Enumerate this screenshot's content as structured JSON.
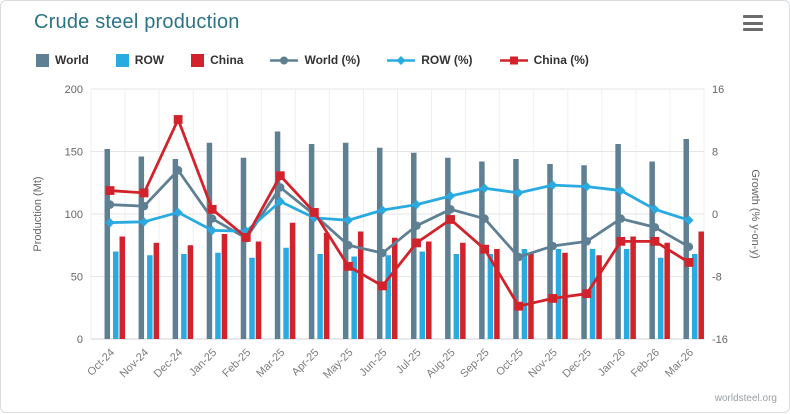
{
  "header": {
    "title": "Crude steel production",
    "menu_icon": "hamburger-icon"
  },
  "legend": {
    "items": [
      {
        "label": "World",
        "type": "bar",
        "color": "#5f7f93"
      },
      {
        "label": "ROW",
        "type": "bar",
        "color": "#29abe2"
      },
      {
        "label": "China",
        "type": "bar",
        "color": "#d2232c"
      },
      {
        "label": "World (%)",
        "type": "line",
        "marker": "circle",
        "color": "#5f7f93"
      },
      {
        "label": "ROW (%)",
        "type": "line",
        "marker": "diamond",
        "color": "#29abe2"
      },
      {
        "label": "China (%)",
        "type": "line",
        "marker": "square",
        "color": "#d2232c"
      }
    ]
  },
  "chart_data": {
    "type": "combo-bar-line",
    "title": "Crude steel production",
    "categories": [
      "Oct-24",
      "Nov-24",
      "Dec-24",
      "Jan-25",
      "Feb-25",
      "Mar-25",
      "Apr-25",
      "May-25",
      "Jun-25",
      "Jul-25",
      "Aug-25",
      "Sep-25",
      "Oct-25",
      "Nov-25",
      "Dec-25",
      "Jan-26",
      "Feb-26",
      "Mar-26"
    ],
    "bar_series": [
      {
        "name": "World",
        "color": "#5f7f93",
        "axis": "left",
        "values": [
          152,
          146,
          144,
          157,
          145,
          166,
          156,
          157,
          153,
          149,
          145,
          142,
          144,
          140,
          139,
          156,
          142,
          160
        ]
      },
      {
        "name": "ROW",
        "color": "#29abe2",
        "axis": "left",
        "values": [
          70,
          67,
          68,
          69,
          65,
          73,
          68,
          66,
          67,
          70,
          68,
          68,
          72,
          72,
          72,
          72,
          65,
          68
        ]
      },
      {
        "name": "China",
        "color": "#d2232c",
        "axis": "left",
        "values": [
          82,
          77,
          75,
          84,
          78,
          93,
          85,
          86,
          81,
          78,
          77,
          72,
          69,
          69,
          67,
          82,
          77,
          86
        ]
      }
    ],
    "line_series": [
      {
        "name": "World (%)",
        "color": "#5f7f93",
        "marker": "circle",
        "axis": "right",
        "values": [
          1.2,
          1.0,
          5.6,
          -0.6,
          -3.1,
          3.4,
          -0.1,
          -4.0,
          -5.0,
          -1.5,
          0.6,
          -0.6,
          -5.5,
          -4.1,
          -3.5,
          -0.6,
          -1.7,
          -4.2
        ]
      },
      {
        "name": "ROW (%)",
        "color": "#29abe2",
        "marker": "diamond",
        "axis": "right",
        "values": [
          -1.1,
          -1.0,
          0.2,
          -2.1,
          -2.2,
          1.6,
          -0.5,
          -0.8,
          0.5,
          1.2,
          2.3,
          3.3,
          2.7,
          3.7,
          3.5,
          3.0,
          0.6,
          -0.8
        ]
      },
      {
        "name": "China (%)",
        "color": "#d2232c",
        "marker": "square",
        "axis": "right",
        "values": [
          3.0,
          2.7,
          12.1,
          0.6,
          -3.0,
          4.9,
          0.2,
          -6.7,
          -9.2,
          -3.7,
          -0.7,
          -4.5,
          -11.8,
          -10.8,
          -10.2,
          -3.5,
          -3.5,
          -6.2
        ]
      }
    ],
    "y_left": {
      "label": "Production (Mt)",
      "ticks": [
        0,
        50,
        100,
        150,
        200
      ],
      "range": [
        0,
        200
      ]
    },
    "y_right": {
      "label": "Growth (% y-on-y)",
      "ticks": [
        -16,
        -8,
        0,
        8,
        16
      ],
      "range": [
        -16,
        16
      ]
    },
    "grid": true,
    "legend_position": "top"
  },
  "footer": {
    "watermark": "worldsteel.org"
  }
}
